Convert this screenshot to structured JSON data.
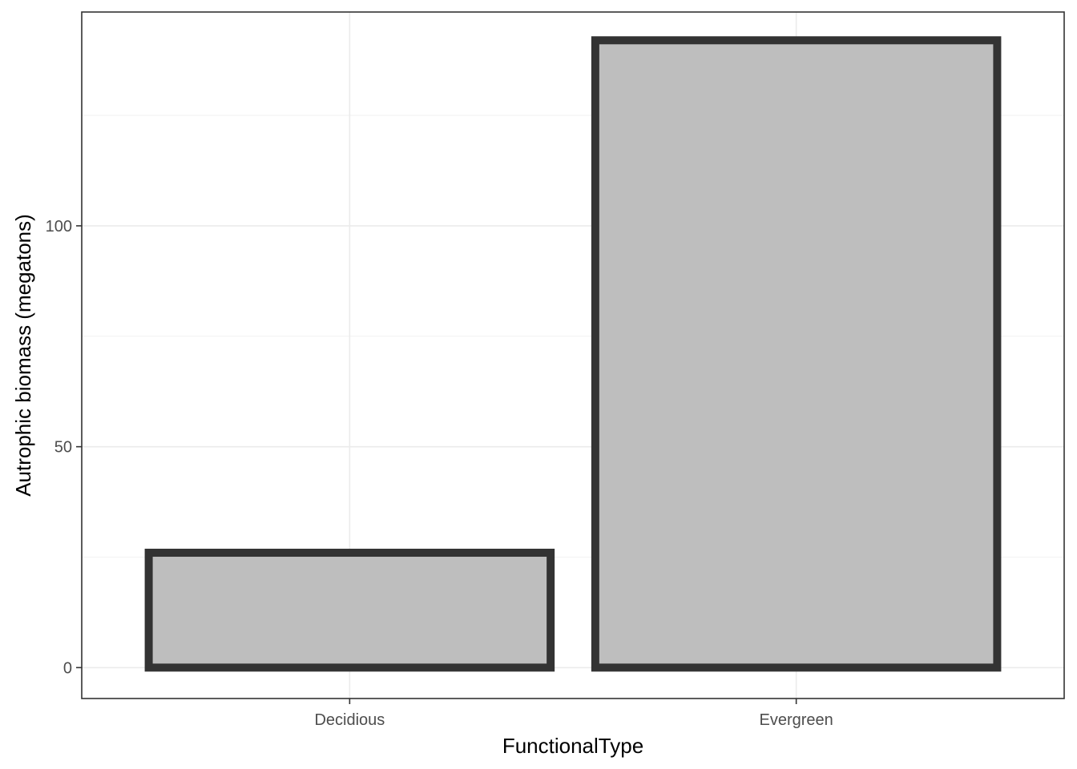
{
  "chart_data": {
    "type": "bar",
    "categories": [
      "Decidious",
      "Evergreen"
    ],
    "values": [
      26,
      142
    ],
    "title": "",
    "xlabel": "FunctionalType",
    "ylabel": "Autrophic biomass (megatons)",
    "ylim": [
      -7,
      148.4
    ],
    "yticks": [
      0,
      50,
      100
    ],
    "yticklabels": [
      "0",
      "50",
      "100"
    ],
    "grid": true,
    "legend": "none",
    "bar_fill": "#bebebe",
    "bar_outline": "#333333"
  }
}
